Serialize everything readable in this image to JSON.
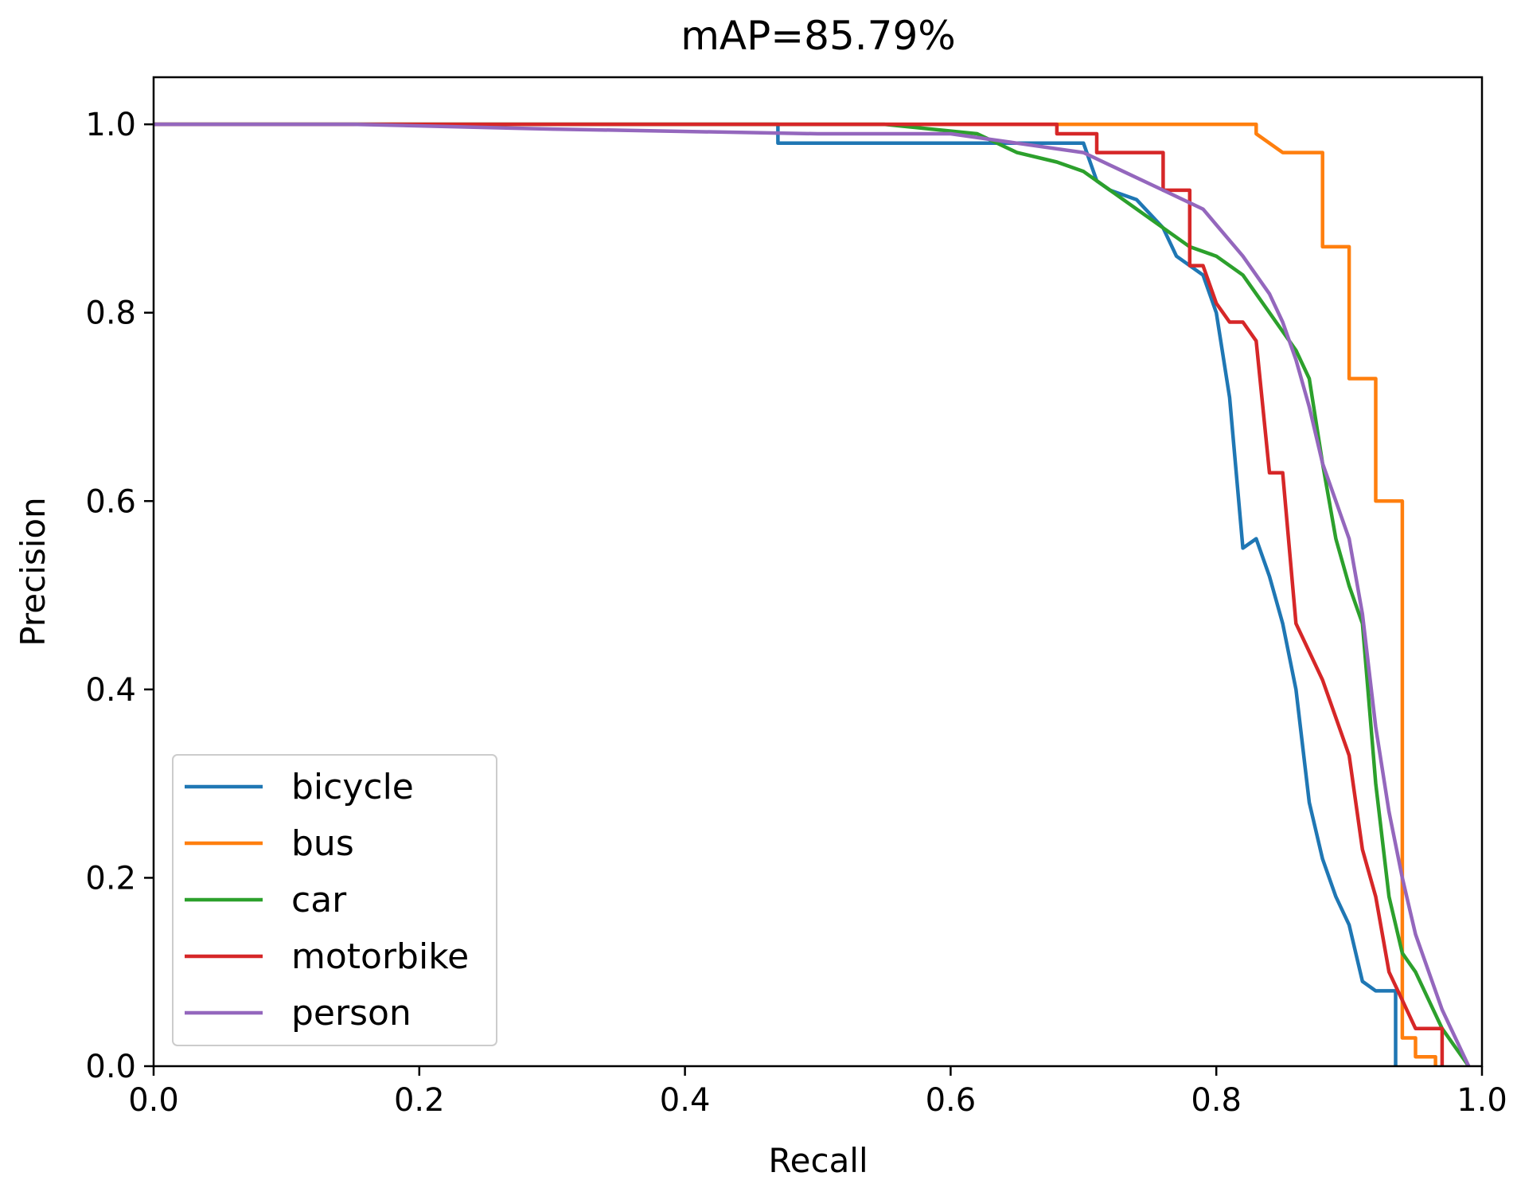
{
  "chart_data": {
    "type": "line",
    "title": "mAP=85.79%",
    "xlabel": "Recall",
    "ylabel": "Precision",
    "xlim": [
      0.0,
      1.0
    ],
    "ylim": [
      0.0,
      1.05
    ],
    "x_ticks": [
      "0.0",
      "0.2",
      "0.4",
      "0.6",
      "0.8",
      "1.0"
    ],
    "y_ticks": [
      "0.0",
      "0.2",
      "0.4",
      "0.6",
      "0.8",
      "1.0"
    ],
    "grid": false,
    "legend_position": "lower-left",
    "series": [
      {
        "name": "bicycle",
        "color": "#1f77b4",
        "x": [
          0.0,
          0.47,
          0.47,
          0.7,
          0.71,
          0.72,
          0.74,
          0.76,
          0.77,
          0.79,
          0.8,
          0.81,
          0.82,
          0.83,
          0.84,
          0.85,
          0.86,
          0.87,
          0.88,
          0.89,
          0.9,
          0.91,
          0.92,
          0.935,
          0.935
        ],
        "y": [
          1.0,
          1.0,
          0.98,
          0.98,
          0.94,
          0.93,
          0.92,
          0.89,
          0.86,
          0.84,
          0.8,
          0.71,
          0.55,
          0.56,
          0.52,
          0.47,
          0.4,
          0.28,
          0.22,
          0.18,
          0.15,
          0.09,
          0.08,
          0.08,
          0.0
        ]
      },
      {
        "name": "bus",
        "color": "#ff7f0e",
        "x": [
          0.0,
          0.83,
          0.83,
          0.85,
          0.88,
          0.88,
          0.9,
          0.9,
          0.92,
          0.92,
          0.94,
          0.94,
          0.95,
          0.95,
          0.965,
          0.965
        ],
        "y": [
          1.0,
          1.0,
          0.99,
          0.97,
          0.97,
          0.87,
          0.87,
          0.73,
          0.73,
          0.6,
          0.6,
          0.03,
          0.03,
          0.01,
          0.01,
          0.0
        ]
      },
      {
        "name": "car",
        "color": "#2ca02c",
        "x": [
          0.0,
          0.55,
          0.62,
          0.65,
          0.68,
          0.7,
          0.72,
          0.75,
          0.78,
          0.8,
          0.82,
          0.84,
          0.86,
          0.87,
          0.88,
          0.89,
          0.9,
          0.91,
          0.92,
          0.93,
          0.94,
          0.95,
          0.96,
          0.97,
          0.98,
          0.99
        ],
        "y": [
          1.0,
          1.0,
          0.99,
          0.97,
          0.96,
          0.95,
          0.93,
          0.9,
          0.87,
          0.86,
          0.84,
          0.8,
          0.76,
          0.73,
          0.64,
          0.56,
          0.51,
          0.47,
          0.3,
          0.18,
          0.12,
          0.1,
          0.07,
          0.04,
          0.02,
          0.0
        ]
      },
      {
        "name": "motorbike",
        "color": "#d62728",
        "x": [
          0.0,
          0.15,
          0.15,
          0.68,
          0.68,
          0.71,
          0.71,
          0.76,
          0.76,
          0.78,
          0.78,
          0.79,
          0.8,
          0.81,
          0.82,
          0.83,
          0.84,
          0.85,
          0.86,
          0.87,
          0.88,
          0.89,
          0.9,
          0.91,
          0.92,
          0.93,
          0.94,
          0.95,
          0.97,
          0.97
        ],
        "y": [
          1.0,
          1.0,
          1.0,
          1.0,
          0.99,
          0.99,
          0.97,
          0.97,
          0.93,
          0.93,
          0.85,
          0.85,
          0.81,
          0.79,
          0.79,
          0.77,
          0.63,
          0.63,
          0.47,
          0.44,
          0.41,
          0.37,
          0.33,
          0.23,
          0.18,
          0.1,
          0.07,
          0.04,
          0.04,
          0.0
        ]
      },
      {
        "name": "person",
        "color": "#9467bd",
        "x": [
          0.0,
          0.15,
          0.3,
          0.5,
          0.6,
          0.65,
          0.7,
          0.73,
          0.76,
          0.79,
          0.82,
          0.84,
          0.85,
          0.86,
          0.87,
          0.88,
          0.89,
          0.9,
          0.91,
          0.92,
          0.93,
          0.94,
          0.95,
          0.96,
          0.97,
          0.98,
          0.99
        ],
        "y": [
          1.0,
          1.0,
          0.995,
          0.99,
          0.99,
          0.98,
          0.97,
          0.95,
          0.93,
          0.91,
          0.86,
          0.82,
          0.79,
          0.75,
          0.7,
          0.64,
          0.6,
          0.56,
          0.48,
          0.36,
          0.27,
          0.2,
          0.14,
          0.1,
          0.06,
          0.03,
          0.0
        ]
      }
    ]
  }
}
